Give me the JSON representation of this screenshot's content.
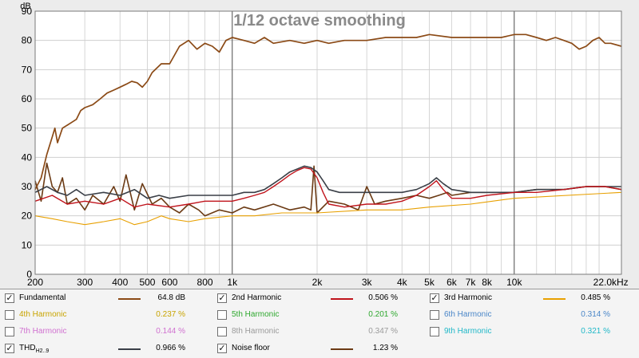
{
  "chart_data": {
    "type": "line",
    "title": "1/12 octave smoothing",
    "ylabel": "dB",
    "xscale": "log",
    "xlim": [
      200,
      24000
    ],
    "ylim": [
      0,
      90
    ],
    "yticks": [
      0,
      10,
      20,
      30,
      40,
      50,
      60,
      70,
      80,
      90
    ],
    "xticks": [
      {
        "f": 200,
        "label": "200"
      },
      {
        "f": 300,
        "label": "300"
      },
      {
        "f": 400,
        "label": "400"
      },
      {
        "f": 500,
        "label": "500"
      },
      {
        "f": 600,
        "label": "600"
      },
      {
        "f": 800,
        "label": "800"
      },
      {
        "f": 1000,
        "label": "1k"
      },
      {
        "f": 2000,
        "label": "2k"
      },
      {
        "f": 3000,
        "label": "3k"
      },
      {
        "f": 4000,
        "label": "4k"
      },
      {
        "f": 5000,
        "label": "5k"
      },
      {
        "f": 6000,
        "label": "6k"
      },
      {
        "f": 7000,
        "label": "7k"
      },
      {
        "f": 8000,
        "label": "8k"
      },
      {
        "f": 10000,
        "label": "10k"
      },
      {
        "f": 22000,
        "label": "22.0kHz"
      }
    ],
    "grid": true,
    "series": [
      {
        "name": "Noise floor",
        "color": "#6b3a14",
        "width": 1.6,
        "points": [
          [
            200,
            32
          ],
          [
            210,
            25
          ],
          [
            220,
            38
          ],
          [
            230,
            30
          ],
          [
            240,
            28
          ],
          [
            250,
            33
          ],
          [
            260,
            24
          ],
          [
            280,
            26
          ],
          [
            300,
            22
          ],
          [
            320,
            27
          ],
          [
            350,
            24
          ],
          [
            380,
            30
          ],
          [
            400,
            25
          ],
          [
            420,
            34
          ],
          [
            450,
            22
          ],
          [
            480,
            31
          ],
          [
            520,
            24
          ],
          [
            560,
            26
          ],
          [
            600,
            23
          ],
          [
            650,
            21
          ],
          [
            700,
            24
          ],
          [
            760,
            22
          ],
          [
            800,
            20
          ],
          [
            900,
            22
          ],
          [
            1000,
            21
          ],
          [
            1100,
            23
          ],
          [
            1200,
            22
          ],
          [
            1400,
            24
          ],
          [
            1600,
            22
          ],
          [
            1800,
            23
          ],
          [
            1900,
            22
          ],
          [
            1950,
            37
          ],
          [
            2000,
            21
          ],
          [
            2200,
            25
          ],
          [
            2500,
            24
          ],
          [
            2800,
            22
          ],
          [
            3000,
            30
          ],
          [
            3200,
            24
          ],
          [
            3500,
            25
          ],
          [
            4000,
            26
          ],
          [
            4500,
            27
          ],
          [
            5000,
            26
          ],
          [
            5400,
            27
          ],
          [
            5800,
            28
          ],
          [
            6000,
            27
          ],
          [
            7000,
            28
          ],
          [
            8000,
            28
          ],
          [
            9000,
            28
          ],
          [
            10000,
            28
          ],
          [
            12000,
            29
          ],
          [
            15000,
            29
          ],
          [
            18000,
            30
          ],
          [
            21000,
            30
          ],
          [
            24000,
            29
          ]
        ]
      },
      {
        "name": "THD H2..9",
        "color": "#3a3f47",
        "width": 1.6,
        "points": [
          [
            200,
            28
          ],
          [
            220,
            30
          ],
          [
            240,
            28
          ],
          [
            260,
            27
          ],
          [
            280,
            29
          ],
          [
            300,
            27
          ],
          [
            350,
            28
          ],
          [
            400,
            27
          ],
          [
            450,
            29
          ],
          [
            500,
            26
          ],
          [
            550,
            27
          ],
          [
            600,
            26
          ],
          [
            700,
            27
          ],
          [
            800,
            27
          ],
          [
            900,
            27
          ],
          [
            1000,
            27
          ],
          [
            1100,
            28
          ],
          [
            1200,
            28
          ],
          [
            1300,
            29
          ],
          [
            1400,
            31
          ],
          [
            1500,
            33
          ],
          [
            1600,
            35
          ],
          [
            1700,
            36
          ],
          [
            1800,
            37
          ],
          [
            1900,
            36.5
          ],
          [
            2000,
            35
          ],
          [
            2100,
            32
          ],
          [
            2200,
            29
          ],
          [
            2400,
            28
          ],
          [
            2700,
            28
          ],
          [
            3000,
            28
          ],
          [
            3500,
            28
          ],
          [
            4000,
            28
          ],
          [
            4500,
            29
          ],
          [
            5000,
            31
          ],
          [
            5300,
            33
          ],
          [
            5600,
            31
          ],
          [
            6000,
            29
          ],
          [
            7000,
            28
          ],
          [
            8000,
            28
          ],
          [
            9000,
            28
          ],
          [
            10000,
            28
          ],
          [
            12000,
            29
          ],
          [
            15000,
            29
          ],
          [
            18000,
            30
          ],
          [
            21000,
            30
          ],
          [
            24000,
            30
          ]
        ]
      },
      {
        "name": "2nd Harmonic",
        "color": "#c0141c",
        "width": 1.4,
        "points": [
          [
            200,
            25
          ],
          [
            230,
            27
          ],
          [
            260,
            24
          ],
          [
            300,
            25
          ],
          [
            350,
            24
          ],
          [
            400,
            26
          ],
          [
            450,
            23
          ],
          [
            500,
            24
          ],
          [
            600,
            23
          ],
          [
            700,
            24
          ],
          [
            800,
            25
          ],
          [
            900,
            25
          ],
          [
            1000,
            25
          ],
          [
            1100,
            26
          ],
          [
            1200,
            27
          ],
          [
            1300,
            28
          ],
          [
            1400,
            30
          ],
          [
            1500,
            32
          ],
          [
            1600,
            34
          ],
          [
            1700,
            35.5
          ],
          [
            1800,
            36.5
          ],
          [
            1900,
            36
          ],
          [
            2000,
            33
          ],
          [
            2100,
            28
          ],
          [
            2200,
            24
          ],
          [
            2500,
            23
          ],
          [
            3000,
            24
          ],
          [
            3500,
            24
          ],
          [
            4000,
            25
          ],
          [
            4500,
            27
          ],
          [
            5000,
            30
          ],
          [
            5300,
            32
          ],
          [
            5600,
            29
          ],
          [
            6000,
            26
          ],
          [
            7000,
            26
          ],
          [
            8000,
            27
          ],
          [
            10000,
            28
          ],
          [
            12000,
            28
          ],
          [
            15000,
            29
          ],
          [
            18000,
            30
          ],
          [
            21000,
            30
          ],
          [
            24000,
            29
          ]
        ]
      },
      {
        "name": "3rd Harmonic",
        "color": "#e8a000",
        "width": 1.1,
        "points": [
          [
            200,
            20
          ],
          [
            230,
            19
          ],
          [
            260,
            18
          ],
          [
            300,
            17
          ],
          [
            350,
            18
          ],
          [
            400,
            19
          ],
          [
            450,
            17
          ],
          [
            500,
            18
          ],
          [
            560,
            20
          ],
          [
            600,
            19
          ],
          [
            700,
            18
          ],
          [
            800,
            19
          ],
          [
            1000,
            20
          ],
          [
            1200,
            20
          ],
          [
            1500,
            21
          ],
          [
            2000,
            21
          ],
          [
            3000,
            22
          ],
          [
            4000,
            22
          ],
          [
            5000,
            23
          ],
          [
            7000,
            24
          ],
          [
            10000,
            26
          ],
          [
            24000,
            28
          ]
        ]
      },
      {
        "name": "Fundamental",
        "color": "#8b4a16",
        "width": 1.7,
        "points": [
          [
            200,
            29
          ],
          [
            210,
            33
          ],
          [
            220,
            41
          ],
          [
            230,
            47
          ],
          [
            235,
            50
          ],
          [
            240,
            45
          ],
          [
            250,
            50
          ],
          [
            260,
            51
          ],
          [
            270,
            52
          ],
          [
            280,
            53
          ],
          [
            290,
            56
          ],
          [
            300,
            57
          ],
          [
            320,
            58
          ],
          [
            340,
            60
          ],
          [
            360,
            62
          ],
          [
            380,
            63
          ],
          [
            400,
            64
          ],
          [
            420,
            65
          ],
          [
            440,
            66
          ],
          [
            460,
            65.5
          ],
          [
            480,
            64
          ],
          [
            500,
            66
          ],
          [
            520,
            69
          ],
          [
            560,
            72
          ],
          [
            600,
            72
          ],
          [
            650,
            78
          ],
          [
            700,
            80
          ],
          [
            750,
            77
          ],
          [
            800,
            79
          ],
          [
            850,
            78
          ],
          [
            900,
            76
          ],
          [
            950,
            80
          ],
          [
            1000,
            81
          ],
          [
            1100,
            80
          ],
          [
            1200,
            79
          ],
          [
            1300,
            81
          ],
          [
            1400,
            79
          ],
          [
            1600,
            80
          ],
          [
            1800,
            79
          ],
          [
            2000,
            80
          ],
          [
            2200,
            79
          ],
          [
            2500,
            80
          ],
          [
            3000,
            80
          ],
          [
            3500,
            81
          ],
          [
            4000,
            81
          ],
          [
            4500,
            81
          ],
          [
            5000,
            82
          ],
          [
            6000,
            81
          ],
          [
            7000,
            81
          ],
          [
            8000,
            81
          ],
          [
            9000,
            81
          ],
          [
            10000,
            82
          ],
          [
            11000,
            82
          ],
          [
            12000,
            81
          ],
          [
            13000,
            80
          ],
          [
            14000,
            81
          ],
          [
            15000,
            80
          ],
          [
            16000,
            79
          ],
          [
            17000,
            77
          ],
          [
            18000,
            78
          ],
          [
            19000,
            80
          ],
          [
            20000,
            81
          ],
          [
            21000,
            79
          ],
          [
            22000,
            79
          ],
          [
            24000,
            78
          ]
        ]
      }
    ]
  },
  "legend": {
    "rows": [
      [
        {
          "name": "Fundamental",
          "checked": true,
          "name_color": "#000000",
          "line_color": "#8b4a16",
          "line_visible": true,
          "value": "64.8 dB",
          "value_color": "#000000"
        },
        {
          "name": "2nd Harmonic",
          "checked": true,
          "name_color": "#000000",
          "line_color": "#c0141c",
          "line_visible": true,
          "value": "0.506 %",
          "value_color": "#000000"
        },
        {
          "name": "3rd Harmonic",
          "checked": true,
          "name_color": "#000000",
          "line_color": "#e8a000",
          "line_visible": true,
          "value": "0.485 %",
          "value_color": "#000000"
        }
      ],
      [
        {
          "name": "4th Harmonic",
          "checked": false,
          "name_color": "#c8a400",
          "line_color": "#c8a400",
          "line_visible": false,
          "value": "0.237 %",
          "value_color": "#c8a400"
        },
        {
          "name": "5th Harmonic",
          "checked": false,
          "name_color": "#2fa82f",
          "line_color": "#2fa82f",
          "line_visible": false,
          "value": "0.201 %",
          "value_color": "#2fa82f"
        },
        {
          "name": "6th Harmonic",
          "checked": false,
          "name_color": "#4a86c8",
          "line_color": "#4a86c8",
          "line_visible": false,
          "value": "0.314 %",
          "value_color": "#4a86c8"
        }
      ],
      [
        {
          "name": "7th Harmonic",
          "checked": false,
          "name_color": "#d070d0",
          "line_color": "#d070d0",
          "line_visible": false,
          "value": "0.144 %",
          "value_color": "#d070d0"
        },
        {
          "name": "8th Harmonic",
          "checked": false,
          "name_color": "#9a9a9a",
          "line_color": "#9a9a9a",
          "line_visible": false,
          "value": "0.347 %",
          "value_color": "#9a9a9a"
        },
        {
          "name": "9th Harmonic",
          "checked": false,
          "name_color": "#20b8c8",
          "line_color": "#20b8c8",
          "line_visible": false,
          "value": "0.321 %",
          "value_color": "#20b8c8"
        }
      ],
      [
        {
          "name": "THD",
          "sub": "H2..9",
          "checked": true,
          "name_color": "#000000",
          "line_color": "#3a3f47",
          "line_visible": true,
          "value": "0.966 %",
          "value_color": "#000000"
        },
        {
          "name": "Noise floor",
          "checked": true,
          "name_color": "#000000",
          "line_color": "#6b3a14",
          "line_visible": true,
          "value": "1.23 %",
          "value_color": "#000000"
        }
      ]
    ]
  }
}
